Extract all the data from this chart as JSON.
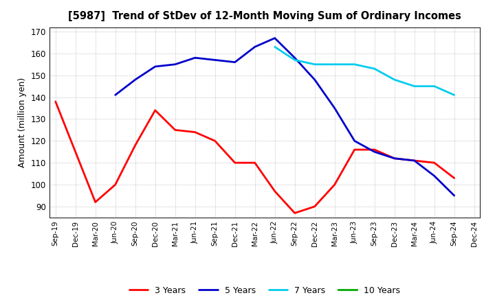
{
  "title": "[5987]  Trend of StDev of 12-Month Moving Sum of Ordinary Incomes",
  "ylabel": "Amount (million yen)",
  "ylim": [
    85,
    172
  ],
  "yticks": [
    90,
    100,
    110,
    120,
    130,
    140,
    150,
    160,
    170
  ],
  "background_color": "#ffffff",
  "plot_bg_color": "#ffffff",
  "grid_color": "#999999",
  "x_labels": [
    "Sep-19",
    "Dec-19",
    "Mar-20",
    "Jun-20",
    "Sep-20",
    "Dec-20",
    "Mar-21",
    "Jun-21",
    "Sep-21",
    "Dec-21",
    "Mar-22",
    "Jun-22",
    "Sep-22",
    "Dec-22",
    "Mar-23",
    "Jun-23",
    "Sep-23",
    "Dec-23",
    "Mar-24",
    "Jun-24",
    "Sep-24",
    "Dec-24"
  ],
  "series": {
    "3 Years": {
      "color": "#ff0000",
      "linewidth": 2.0,
      "data": [
        138,
        115,
        92,
        100,
        118,
        134,
        125,
        124,
        120,
        110,
        110,
        97,
        87,
        90,
        100,
        116,
        116,
        112,
        111,
        110,
        103,
        null
      ]
    },
    "5 Years": {
      "color": "#0000cc",
      "linewidth": 2.0,
      "data": [
        null,
        null,
        null,
        141,
        148,
        154,
        155,
        158,
        157,
        156,
        163,
        167,
        158,
        148,
        135,
        120,
        115,
        112,
        111,
        104,
        95,
        null
      ]
    },
    "7 Years": {
      "color": "#00ccee",
      "linewidth": 2.0,
      "data": [
        null,
        null,
        null,
        null,
        null,
        null,
        null,
        null,
        null,
        null,
        null,
        163,
        157,
        155,
        155,
        155,
        153,
        148,
        145,
        145,
        141,
        null
      ]
    },
    "10 Years": {
      "color": "#00aa00",
      "linewidth": 2.0,
      "data": [
        null,
        null,
        null,
        null,
        null,
        null,
        null,
        null,
        null,
        null,
        null,
        null,
        null,
        null,
        null,
        null,
        null,
        null,
        null,
        null,
        null,
        null
      ]
    }
  },
  "legend_order": [
    "3 Years",
    "5 Years",
    "7 Years",
    "10 Years"
  ]
}
